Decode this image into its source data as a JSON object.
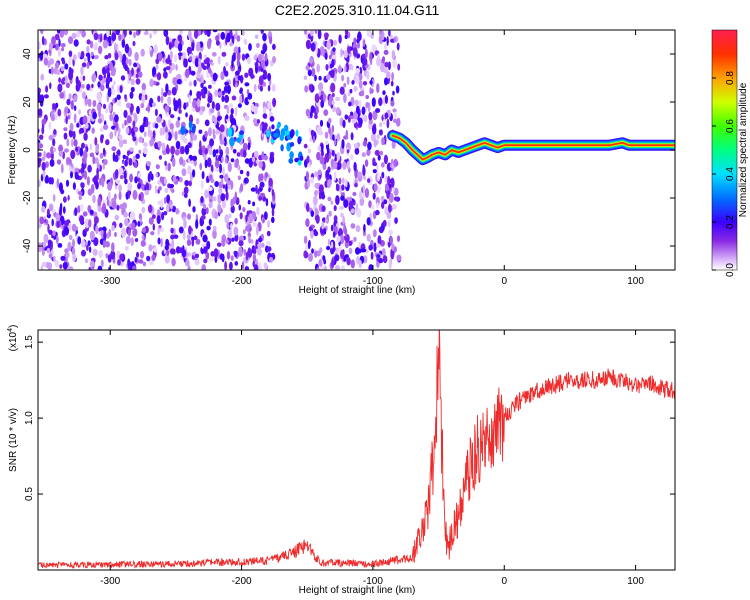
{
  "title": "C2E2.2025.310.11.04.G11",
  "chart_data": [
    {
      "type": "heatmap",
      "title": "C2E2.2025.310.11.04.G11",
      "xlabel": "Height of straight line (km)",
      "ylabel": "Frequency (Hz)",
      "xlim": [
        -355,
        130
      ],
      "ylim": [
        -50,
        50
      ],
      "x_ticks": [
        -300,
        -200,
        -100,
        0,
        100
      ],
      "x_tick_labels": [
        "-300",
        "-200",
        "-100",
        "0",
        "100"
      ],
      "y_ticks": [
        -40,
        -20,
        0,
        20,
        40
      ],
      "y_tick_labels": [
        "-40",
        "-20",
        "0",
        "20",
        "40"
      ],
      "noise_regions": [
        {
          "x_start": -355,
          "x_end": -175
        },
        {
          "x_start": -152,
          "x_end": -80
        }
      ],
      "signal_track": {
        "x": [
          -85,
          -80,
          -75,
          -70,
          -66,
          -62,
          -58,
          -55,
          -50,
          -45,
          -40,
          -35,
          -30,
          -25,
          -20,
          -15,
          -10,
          -5,
          0,
          20,
          40,
          60,
          80,
          90,
          95,
          100,
          110,
          120,
          130
        ],
        "y": [
          6,
          5,
          3,
          0,
          -2,
          -4,
          -3,
          -2,
          -1,
          -2,
          0,
          -1,
          0,
          1,
          2,
          3,
          2,
          1,
          2,
          2,
          2,
          2,
          2,
          3,
          2,
          2,
          2,
          2,
          2
        ]
      },
      "hot_spots": [
        {
          "x": -175,
          "y": 5
        },
        {
          "x": -170,
          "y": 8
        },
        {
          "x": -165,
          "y": 3
        },
        {
          "x": -160,
          "y": 5
        },
        {
          "x": -158,
          "y": -3
        },
        {
          "x": -240,
          "y": 8
        },
        {
          "x": -205,
          "y": 5
        }
      ],
      "colorbar": {
        "label": "Normalized spectral amplitude",
        "range": [
          0,
          1
        ],
        "ticks": [
          0.0,
          0.2,
          0.4,
          0.6,
          0.8
        ],
        "tick_labels": [
          "0.0",
          "0.2",
          "0.4",
          "0.6",
          "0.8"
        ]
      }
    },
    {
      "type": "line",
      "xlabel": "Height of straight line (km)",
      "ylabel": "SNR (10 * v/v)",
      "y_multiplier_label": "(x10",
      "y_multiplier_exp": "4",
      "y_multiplier_close": ")",
      "xlim": [
        -355,
        130
      ],
      "ylim": [
        0,
        1.58
      ],
      "x_ticks": [
        -300,
        -200,
        -100,
        0,
        100
      ],
      "x_tick_labels": [
        "-300",
        "-200",
        "-100",
        "0",
        "100"
      ],
      "y_ticks": [
        0.5,
        1.0,
        1.5
      ],
      "y_tick_labels": [
        "0.5",
        "1.0",
        "1.5"
      ],
      "line_color": "#ee2c2c",
      "series": [
        {
          "name": "SNR",
          "x": [
            -355,
            -250,
            -180,
            -165,
            -155,
            -150,
            -145,
            -140,
            -100,
            -70,
            -58,
            -52,
            -50,
            -48,
            -46,
            -44,
            -42,
            -40,
            -35,
            -30,
            -25,
            -20,
            -15,
            -10,
            -5,
            0,
            5,
            10,
            20,
            30,
            40,
            50,
            60,
            70,
            80,
            90,
            100,
            110,
            120,
            130
          ],
          "y": [
            0.03,
            0.04,
            0.06,
            0.1,
            0.14,
            0.17,
            0.1,
            0.05,
            0.04,
            0.08,
            0.4,
            0.9,
            1.55,
            0.95,
            0.5,
            0.2,
            0.15,
            0.25,
            0.35,
            0.55,
            0.7,
            0.8,
            0.85,
            0.9,
            0.95,
            1.0,
            1.05,
            1.1,
            1.15,
            1.2,
            1.22,
            1.25,
            1.25,
            1.25,
            1.27,
            1.25,
            1.22,
            1.23,
            1.2,
            1.18
          ]
        }
      ]
    }
  ]
}
